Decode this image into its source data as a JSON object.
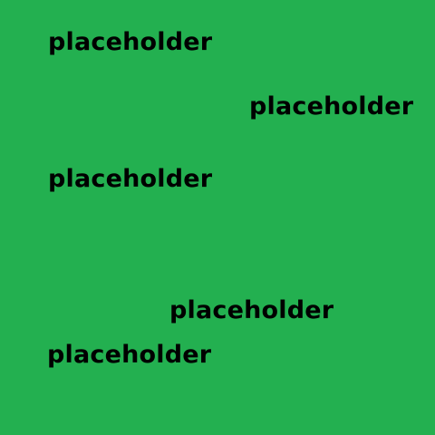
{
  "background_color": "#23b050",
  "text_color": "#000000",
  "labels": [
    "placeholder",
    "placeholder",
    "placeholder",
    "placeholder",
    "placeholder"
  ]
}
